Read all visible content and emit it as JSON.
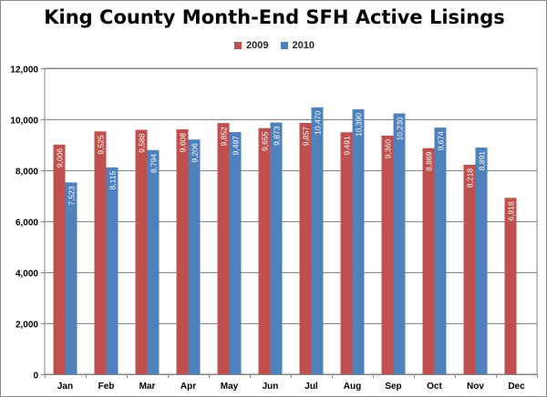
{
  "title": "King County Month-End SFH Active Lisings",
  "colors": {
    "s2009": "#c0504d",
    "s2010": "#4f81bd",
    "grid": "#868686",
    "axis": "#868686"
  },
  "chart_data": {
    "type": "bar",
    "title": "King County Month-End SFH Active Lisings",
    "xlabel": "",
    "ylabel": "",
    "categories": [
      "Jan",
      "Feb",
      "Mar",
      "Apr",
      "May",
      "Jun",
      "Jul",
      "Aug",
      "Sep",
      "Oct",
      "Nov",
      "Dec"
    ],
    "series": [
      {
        "name": "2009",
        "values": [
          9006,
          9525,
          9588,
          9608,
          9852,
          9655,
          9857,
          9491,
          9360,
          8869,
          8218,
          6918
        ],
        "labels": [
          "9,006",
          "9,525",
          "9,588",
          "9,608",
          "9,852",
          "9,655",
          "9,857",
          "9,491",
          "9,360",
          "8,869",
          "8,218",
          "6,918"
        ]
      },
      {
        "name": "2010",
        "values": [
          7523,
          8115,
          8794,
          9206,
          9497,
          9873,
          10470,
          10390,
          10230,
          9674,
          8891,
          null
        ],
        "labels": [
          "7,523",
          "8,115",
          "8,794",
          "9,206",
          "9,497",
          "9,873",
          "10,470",
          "10,390",
          "10,230",
          "9,674",
          "8,891",
          ""
        ]
      }
    ],
    "ylim": [
      0,
      12000
    ],
    "yticks": [
      0,
      2000,
      4000,
      6000,
      8000,
      10000,
      12000
    ],
    "ytick_labels": [
      "0",
      "2,000",
      "4,000",
      "6,000",
      "8,000",
      "10,000",
      "12,000"
    ],
    "grid": true,
    "legend_position": "top"
  }
}
